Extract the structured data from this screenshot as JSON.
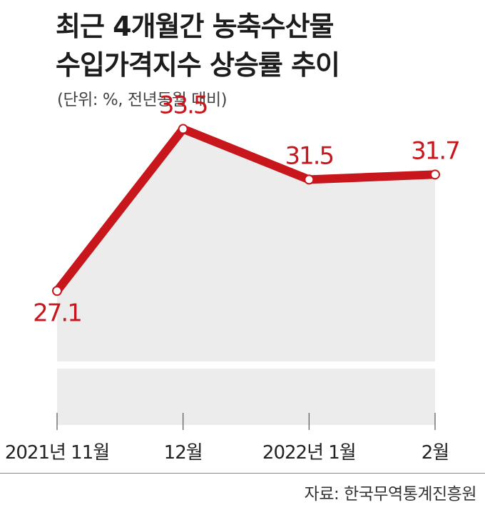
{
  "header": {
    "title_line1": "최근 4개월간 농축수산물",
    "title_line2": "수입가격지수 상승률 추이",
    "unit": "(단위: %, 전년동월 대비)"
  },
  "footer": {
    "source": "자료: 한국무역통계진흥원"
  },
  "colors": {
    "line": "#c8161d",
    "area": "#ececec",
    "label": "#c8161d"
  },
  "chart_data": {
    "type": "line",
    "title": "최근 4개월간 농축수산물 수입가격지수 상승률 추이",
    "subtitle": "(단위: %, 전년동월 대비)",
    "categories": [
      "2021년 11월",
      "12월",
      "2022년 1월",
      "2월"
    ],
    "values": [
      27.1,
      33.5,
      31.5,
      31.7
    ],
    "value_labels": [
      "27.1",
      "33.5",
      "31.5",
      "31.7"
    ],
    "xlabel": "",
    "ylabel": "",
    "ylim": [
      21.8,
      36.0
    ],
    "grid": false,
    "legend": "none",
    "area_fill": true
  }
}
